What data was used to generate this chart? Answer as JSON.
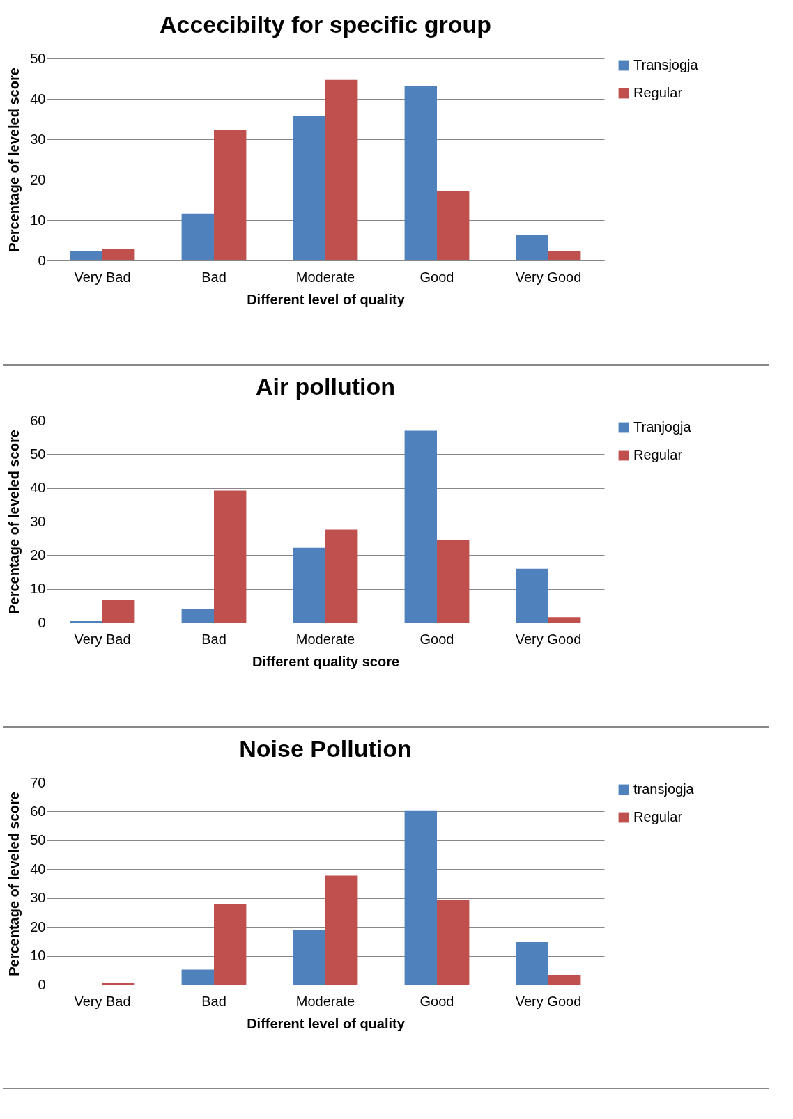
{
  "chart_data": [
    {
      "type": "bar",
      "title": "Accecibilty for specific group",
      "xlabel": "Different level of quality",
      "ylabel": "Percentage of leveled score",
      "categories": [
        "Very Bad",
        "Bad",
        "Moderate",
        "Good",
        "Very Good"
      ],
      "ylim": [
        0,
        50
      ],
      "yticks": [
        0,
        10,
        20,
        30,
        40,
        50
      ],
      "grid": "y",
      "legend": "right",
      "series": [
        {
          "name": "Transjogja",
          "color": "#4f81bd",
          "values": [
            2.4,
            11.6,
            35.8,
            43.2,
            6.3
          ]
        },
        {
          "name": "Regular",
          "color": "#c0504d",
          "values": [
            2.9,
            32.4,
            44.7,
            17.1,
            2.4
          ]
        }
      ]
    },
    {
      "type": "bar",
      "title": "Air pollution",
      "xlabel": "Different quality score",
      "ylabel": "Percentage of leveled score",
      "categories": [
        "Very Bad",
        "Bad",
        "Moderate",
        "Good",
        "Very Good"
      ],
      "ylim": [
        0,
        60
      ],
      "yticks": [
        0,
        10,
        20,
        30,
        40,
        50,
        60
      ],
      "grid": "y",
      "legend": "right",
      "series": [
        {
          "name": "Tranjogja",
          "color": "#4f81bd",
          "values": [
            0.4,
            4,
            22.2,
            57,
            16
          ]
        },
        {
          "name": "Regular",
          "color": "#c0504d",
          "values": [
            6.6,
            39.2,
            27.6,
            24.4,
            1.6
          ]
        }
      ]
    },
    {
      "type": "bar",
      "title": "Noise Pollution",
      "xlabel": "Different level of quality",
      "ylabel": "Percentage of leveled score",
      "categories": [
        "Very Bad",
        "Bad",
        "Moderate",
        "Good",
        "Very Good"
      ],
      "ylim": [
        0,
        70
      ],
      "yticks": [
        0,
        10,
        20,
        30,
        40,
        50,
        60,
        70
      ],
      "grid": "y",
      "legend": "right",
      "series": [
        {
          "name": "transjogja",
          "color": "#4f81bd",
          "values": [
            0,
            5.2,
            18.9,
            60.4,
            14.7
          ]
        },
        {
          "name": "Regular",
          "color": "#c0504d",
          "values": [
            0.5,
            28,
            37.8,
            29.2,
            3.4
          ]
        }
      ]
    }
  ]
}
